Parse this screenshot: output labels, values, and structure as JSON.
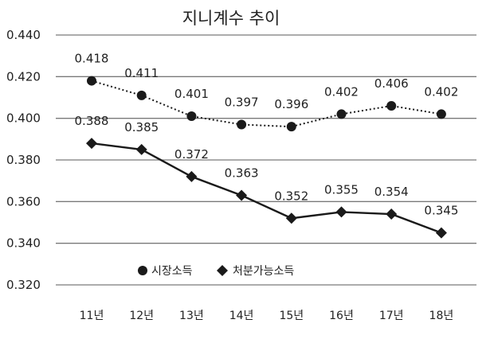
{
  "chart_data": {
    "type": "line",
    "title": "지니계수 추이",
    "categories": [
      "11년",
      "12년",
      "13년",
      "14년",
      "15년",
      "16년",
      "17년",
      "18년"
    ],
    "ylim": [
      0.32,
      0.44
    ],
    "yticks": [
      "0.440",
      "0.420",
      "0.400",
      "0.380",
      "0.360",
      "0.340",
      "0.320"
    ],
    "ytick_values": [
      0.44,
      0.42,
      0.4,
      0.38,
      0.36,
      0.34,
      0.32
    ],
    "grid": true,
    "legend_placement": "bottom-left",
    "series": [
      {
        "name": "시장소득",
        "marker": "circle",
        "line_style": "dotted",
        "values": [
          0.418,
          0.411,
          0.401,
          0.397,
          0.396,
          0.402,
          0.406,
          0.402
        ],
        "labels": [
          "0.418",
          "0.411",
          "0.401",
          "0.397",
          "0.396",
          "0.402",
          "0.406",
          "0.402"
        ]
      },
      {
        "name": "처분가능소득",
        "marker": "diamond",
        "line_style": "solid",
        "values": [
          0.388,
          0.385,
          0.372,
          0.363,
          0.352,
          0.355,
          0.354,
          0.345
        ],
        "labels": [
          "0.388",
          "0.385",
          "0.372",
          "0.363",
          "0.352",
          "0.355",
          "0.354",
          "0.345"
        ]
      }
    ],
    "colors": {
      "series": "#1a1a1a",
      "grid": "#7a7a7a",
      "text": "#222222"
    }
  }
}
